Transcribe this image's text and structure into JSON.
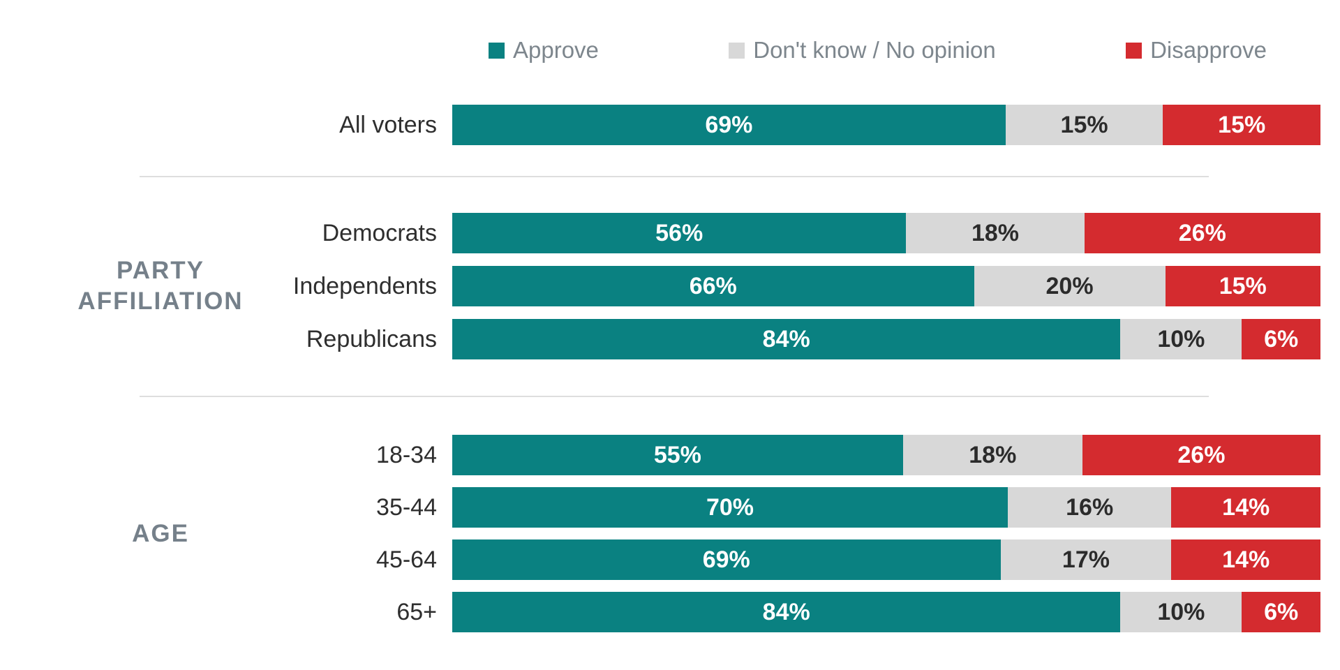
{
  "legend": {
    "items": [
      {
        "name": "approve",
        "label": "Approve",
        "color": "#0a8181",
        "text_color": "#ffffff"
      },
      {
        "name": "dont-know",
        "label": "Don't know / No opinion",
        "color": "#d8d8d8",
        "text_color": "#2b2b2b"
      },
      {
        "name": "disapprove",
        "label": "Disapprove",
        "color": "#d42b2f",
        "text_color": "#ffffff"
      }
    ]
  },
  "colors": {
    "background": "#ffffff",
    "approve": "#0a8181",
    "dont_know": "#d8d8d8",
    "disapprove": "#d42b2f",
    "legend_text": "#7d868d",
    "group_label_text": "#75808a",
    "row_label_text": "#2e2e2e",
    "divider": "#dedede"
  },
  "chart_data": {
    "type": "bar",
    "orientation": "horizontal",
    "stacked": true,
    "normalized_to_row_total": true,
    "value_suffix": "%",
    "series_names": [
      "Approve",
      "Don't know / No opinion",
      "Disapprove"
    ],
    "groups": [
      {
        "label": "",
        "rows": [
          {
            "category": "All voters",
            "values": [
              69,
              15,
              15
            ]
          }
        ]
      },
      {
        "label": "PARTY AFFILIATION",
        "rows": [
          {
            "category": "Democrats",
            "values": [
              56,
              18,
              26
            ]
          },
          {
            "category": "Independents",
            "values": [
              66,
              20,
              15
            ]
          },
          {
            "category": "Republicans",
            "values": [
              84,
              10,
              6
            ]
          }
        ]
      },
      {
        "label": "AGE",
        "rows": [
          {
            "category": "18-34",
            "values": [
              55,
              18,
              26
            ]
          },
          {
            "category": "35-44",
            "values": [
              70,
              16,
              14
            ]
          },
          {
            "category": "45-64",
            "values": [
              69,
              17,
              14
            ]
          },
          {
            "category": "65+",
            "values": [
              84,
              10,
              6
            ]
          }
        ]
      }
    ]
  }
}
